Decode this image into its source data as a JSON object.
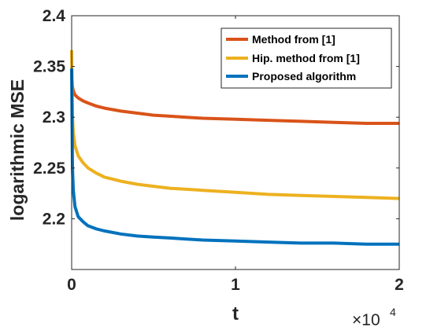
{
  "chart_data": {
    "type": "line",
    "title": "",
    "xlabel": "t",
    "ylabel": "logarithmic MSE",
    "x_multiplier_base": "×10",
    "x_multiplier_exponent": "4",
    "xlim": [
      0,
      20000
    ],
    "ylim": [
      2.15,
      2.4
    ],
    "xticks": [
      0,
      10000,
      20000
    ],
    "xtick_labels": [
      "0",
      "1",
      "2"
    ],
    "yticks": [
      2.2,
      2.25,
      2.3,
      2.35,
      2.4
    ],
    "ytick_labels": [
      "2.2",
      "2.25",
      "2.3",
      "2.35",
      "2.4"
    ],
    "grid": false,
    "legend_position": "top-right",
    "series": [
      {
        "name": "Method from [1]",
        "color": "#d95319",
        "x": [
          0,
          50,
          100,
          200,
          400,
          700,
          1000,
          1500,
          2000,
          3000,
          4000,
          5000,
          6000,
          7000,
          8000,
          10000,
          12000,
          14000,
          16000,
          18000,
          20000
        ],
        "y": [
          2.345,
          2.33,
          2.326,
          2.322,
          2.319,
          2.316,
          2.314,
          2.311,
          2.309,
          2.306,
          2.304,
          2.302,
          2.301,
          2.3,
          2.299,
          2.298,
          2.297,
          2.296,
          2.295,
          2.294,
          2.294
        ]
      },
      {
        "name": "Hip. method from [1]",
        "color": "#edb120",
        "x": [
          0,
          50,
          100,
          200,
          400,
          700,
          1000,
          1500,
          2000,
          3000,
          4000,
          5000,
          6000,
          7000,
          8000,
          10000,
          12000,
          14000,
          16000,
          18000,
          20000
        ],
        "y": [
          2.366,
          2.3,
          2.285,
          2.272,
          2.262,
          2.255,
          2.25,
          2.245,
          2.241,
          2.237,
          2.234,
          2.232,
          2.23,
          2.229,
          2.228,
          2.226,
          2.224,
          2.223,
          2.222,
          2.221,
          2.22
        ]
      },
      {
        "name": "Proposed algorithm",
        "color": "#0072bd",
        "x": [
          0,
          50,
          100,
          200,
          400,
          700,
          1000,
          1500,
          2000,
          3000,
          4000,
          5000,
          6000,
          7000,
          8000,
          10000,
          12000,
          14000,
          16000,
          18000,
          20000
        ],
        "y": [
          2.348,
          2.25,
          2.228,
          2.212,
          2.202,
          2.197,
          2.193,
          2.19,
          2.188,
          2.185,
          2.183,
          2.182,
          2.181,
          2.18,
          2.179,
          2.178,
          2.177,
          2.176,
          2.176,
          2.175,
          2.175
        ]
      }
    ]
  }
}
